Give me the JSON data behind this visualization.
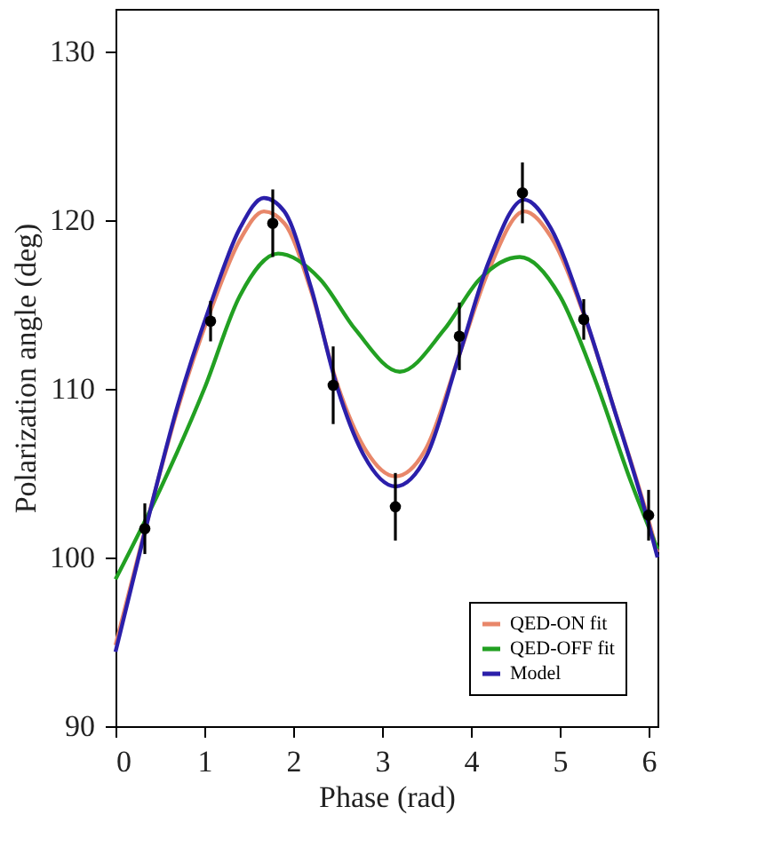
{
  "chart_data": {
    "type": "line",
    "xlabel": "Phase (rad)",
    "ylabel": "Polarization angle (deg)",
    "xlim": [
      0,
      6.1
    ],
    "xticks": [
      0,
      1,
      2,
      3,
      4,
      5,
      6
    ],
    "ylim": [
      90,
      132.5
    ],
    "yticks": [
      90,
      100,
      110,
      120,
      130
    ],
    "grid": false,
    "legend": "bottom right",
    "line_style": "solid",
    "marker": "none",
    "series": [
      {
        "name": "QED-ON fit",
        "color": "#e8876a",
        "x": [
          0,
          0.33,
          0.7,
          1.07,
          1.4,
          1.67,
          1.9,
          2.2,
          2.5,
          2.8,
          3.15,
          3.5,
          3.87,
          4.2,
          4.6,
          4.9,
          5.27,
          5.6,
          6.0,
          6.1
        ],
        "values": [
          94.8,
          101.6,
          108.8,
          114.6,
          118.8,
          120.5,
          119.8,
          115.8,
          110.2,
          106.5,
          104.8,
          106.5,
          112,
          117,
          120.5,
          119,
          114.4,
          109,
          102.2,
          100.3
        ]
      },
      {
        "name": "QED-OFF fit",
        "color": "#22a022",
        "x": [
          0,
          0.5,
          1.0,
          1.4,
          1.83,
          2.3,
          2.7,
          3.2,
          3.7,
          4.1,
          4.55,
          5.0,
          5.4,
          5.8,
          6.1
        ],
        "values": [
          98.7,
          104,
          110,
          115.5,
          118,
          116.5,
          113.5,
          111,
          113.5,
          116.5,
          117.8,
          115.5,
          110.5,
          104.5,
          100.5
        ]
      },
      {
        "name": "Model",
        "color": "#2b1faa",
        "x": [
          0,
          0.33,
          0.7,
          1.07,
          1.4,
          1.67,
          1.9,
          2.2,
          2.5,
          2.8,
          3.15,
          3.5,
          3.87,
          4.2,
          4.6,
          4.9,
          5.27,
          5.6,
          6.0,
          6.1
        ],
        "values": [
          94.4,
          101.5,
          109,
          115,
          119.5,
          121.3,
          120.5,
          116,
          110,
          106,
          104.2,
          106,
          112,
          117.5,
          121.2,
          119.5,
          114.5,
          109,
          102,
          100
        ]
      },
      {
        "color": "#000000",
        "type": "scatter",
        "marker": "circle",
        "x": [
          0.33,
          1.07,
          1.77,
          2.45,
          3.15,
          3.87,
          4.58,
          5.27,
          6.0
        ],
        "values": [
          101.7,
          114.0,
          119.8,
          110.2,
          103.0,
          113.1,
          121.6,
          114.1,
          102.5
        ],
        "errors": [
          1.5,
          1.2,
          2,
          2.3,
          2,
          2,
          1.8,
          1.2,
          1.5
        ]
      }
    ]
  }
}
